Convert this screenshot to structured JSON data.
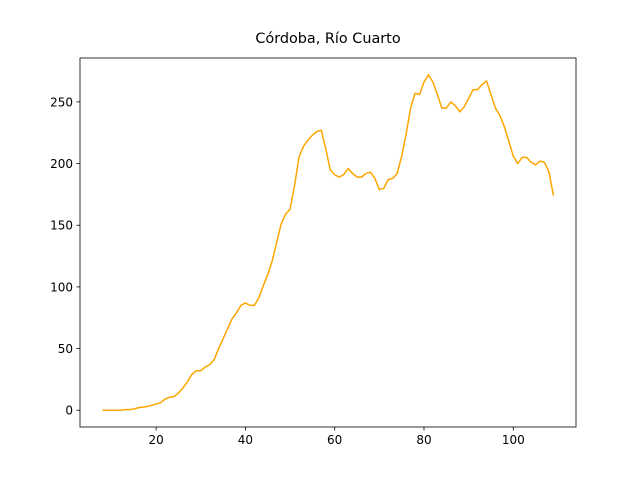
{
  "chart_data": {
    "type": "line",
    "title": "Córdoba, Río Cuarto",
    "x": [
      8,
      9,
      10,
      11,
      12,
      13,
      14,
      15,
      16,
      17,
      18,
      19,
      20,
      21,
      22,
      23,
      24,
      25,
      26,
      27,
      28,
      29,
      30,
      31,
      32,
      33,
      34,
      35,
      36,
      37,
      38,
      39,
      40,
      41,
      42,
      43,
      44,
      45,
      46,
      47,
      48,
      49,
      50,
      51,
      52,
      53,
      54,
      55,
      56,
      57,
      58,
      59,
      60,
      61,
      62,
      63,
      64,
      65,
      66,
      67,
      68,
      69,
      70,
      71,
      72,
      73,
      74,
      75,
      76,
      77,
      78,
      79,
      80,
      81,
      82,
      83,
      84,
      85,
      86,
      87,
      88,
      89,
      90,
      91,
      92,
      93,
      94,
      95,
      96,
      97,
      98,
      99,
      100,
      101,
      102,
      103,
      104,
      105,
      106,
      107,
      108,
      109
    ],
    "series": [
      {
        "color": "#ffa500",
        "values": [
          0,
          0,
          0,
          0,
          0,
          0.5,
          0.5,
          1,
          2,
          2.5,
          3,
          4,
          5,
          6,
          9,
          10.5,
          11,
          14,
          18,
          23,
          29,
          32,
          32,
          35,
          37,
          41,
          50,
          58,
          66,
          74,
          79,
          85,
          87,
          85,
          85,
          91,
          101,
          110,
          121,
          136,
          151,
          159,
          163,
          182,
          205,
          214,
          219,
          223,
          226,
          227,
          212,
          195,
          191,
          189,
          191,
          196,
          192,
          189,
          189,
          192,
          193,
          188,
          179,
          180,
          187,
          188,
          192,
          206,
          224,
          245,
          257,
          256,
          266,
          272,
          266,
          256,
          245,
          245,
          250,
          247,
          242,
          246,
          253,
          260,
          260,
          264,
          267,
          256,
          245,
          239,
          230,
          218,
          206,
          200,
          205,
          205,
          201,
          199,
          202,
          201,
          193,
          174
        ]
      }
    ],
    "xlim": [
      2.95,
      114.05
    ],
    "ylim": [
      -13.6,
      285.6
    ],
    "xticks": [
      20,
      40,
      60,
      80,
      100
    ],
    "yticks": [
      0,
      50,
      100,
      150,
      200,
      250
    ]
  }
}
